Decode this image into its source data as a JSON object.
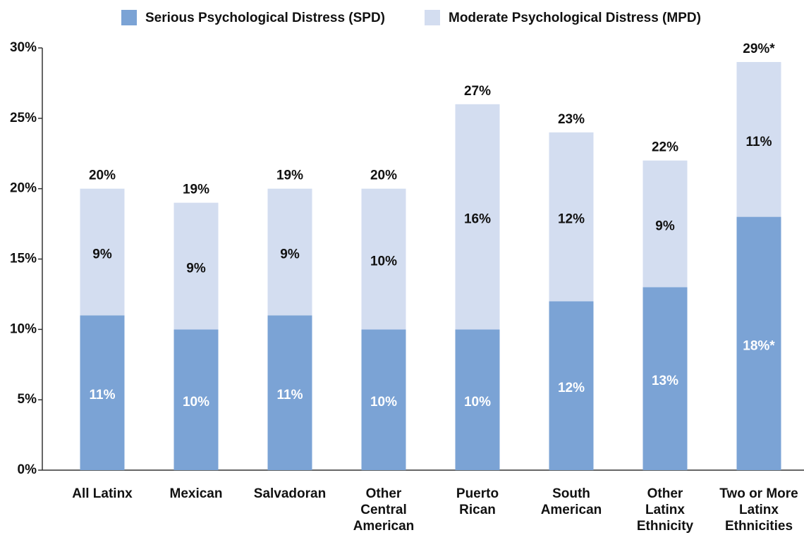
{
  "chart_data": {
    "type": "stacked_bar",
    "categories": [
      "All Latinx",
      "Mexican",
      "Salvadoran",
      "Other Central American",
      "Puerto Rican",
      "South American",
      "Other Latinx Ethnicity",
      "Two or More Latinx Ethnicities"
    ],
    "series": [
      {
        "name": "Serious Psychological Distress (SPD)",
        "color": "#7ba3d5",
        "values": [
          11,
          10,
          11,
          10,
          10,
          12,
          13,
          18
        ],
        "value_labels": [
          "11%",
          "10%",
          "11%",
          "10%",
          "10%",
          "12%",
          "13%",
          "18%*"
        ]
      },
      {
        "name": "Moderate Psychological Distress (MPD)",
        "color": "#d3ddf0",
        "values": [
          9,
          9,
          9,
          10,
          16,
          12,
          9,
          11
        ],
        "value_labels": [
          "9%",
          "9%",
          "9%",
          "10%",
          "16%",
          "12%",
          "9%",
          "11%"
        ]
      }
    ],
    "totals": {
      "values": [
        20,
        19,
        19,
        20,
        27,
        23,
        22,
        29
      ],
      "value_labels": [
        "20%",
        "19%",
        "19%",
        "20%",
        "27%",
        "23%",
        "22%",
        "29%*"
      ]
    },
    "ylim": [
      0,
      30
    ],
    "yticks": [
      {
        "value": 0,
        "label": "0%"
      },
      {
        "value": 5,
        "label": "5%"
      },
      {
        "value": 10,
        "label": "10%"
      },
      {
        "value": 15,
        "label": "15%"
      },
      {
        "value": 20,
        "label": "20%"
      },
      {
        "value": 25,
        "label": "25%"
      },
      {
        "value": 30,
        "label": "30%"
      }
    ],
    "legend": "top"
  }
}
